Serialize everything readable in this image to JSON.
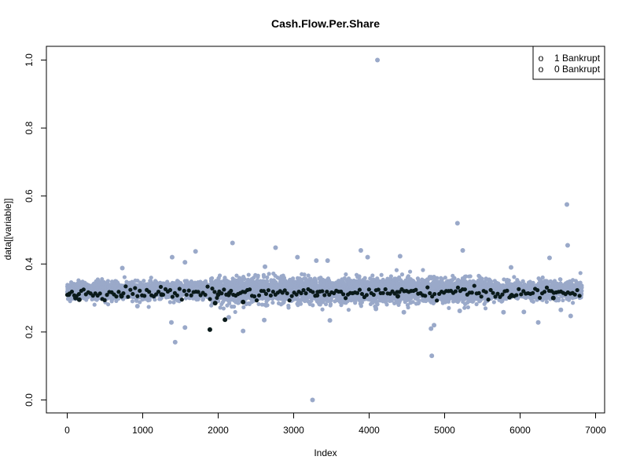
{
  "chart_data": {
    "type": "scatter",
    "title": "Cash.Flow.Per.Share",
    "xlabel": "Index",
    "ylabel": "data[[variable]]",
    "xlim": [
      0,
      6819
    ],
    "ylim": [
      0,
      1.0
    ],
    "x_ticks": [
      0,
      1000,
      2000,
      3000,
      4000,
      5000,
      6000,
      7000
    ],
    "y_ticks": [
      0.0,
      0.2,
      0.4,
      0.6,
      0.8,
      1.0
    ],
    "x_tick_labels": [
      "0",
      "1000",
      "2000",
      "3000",
      "4000",
      "5000",
      "6000",
      "7000"
    ],
    "y_tick_labels": [
      "0.0",
      "0.2",
      "0.4",
      "0.6",
      "0.8",
      "1.0"
    ],
    "grid": false,
    "legend": {
      "placement": "top-right",
      "entries": [
        {
          "marker": "o",
          "label": "1 Bankrupt"
        },
        {
          "marker": "o",
          "label": "0 Bankrupt"
        }
      ]
    },
    "colors": {
      "bankrupt_0": "#9aa9c9",
      "bankrupt_1": "#0a1a1a"
    },
    "series": [
      {
        "name": "0 Bankrupt",
        "points": [
          [
            4110,
            1.0
          ],
          [
            6620,
            0.575
          ],
          [
            5170,
            0.52
          ],
          [
            6630,
            0.455
          ],
          [
            2190,
            0.462
          ],
          [
            2760,
            0.448
          ],
          [
            5240,
            0.44
          ],
          [
            1700,
            0.437
          ],
          [
            3890,
            0.44
          ],
          [
            1390,
            0.42
          ],
          [
            3050,
            0.42
          ],
          [
            4410,
            0.423
          ],
          [
            3300,
            0.41
          ],
          [
            3450,
            0.41
          ],
          [
            6390,
            0.418
          ],
          [
            730,
            0.388
          ],
          [
            1560,
            0.405
          ],
          [
            3980,
            0.42
          ],
          [
            2620,
            0.392
          ],
          [
            5880,
            0.39
          ],
          [
            1430,
            0.17
          ],
          [
            1380,
            0.228
          ],
          [
            1560,
            0.213
          ],
          [
            2140,
            0.243
          ],
          [
            2330,
            0.203
          ],
          [
            2610,
            0.235
          ],
          [
            3250,
            0.0
          ],
          [
            3480,
            0.234
          ],
          [
            4830,
            0.13
          ],
          [
            4860,
            0.22
          ],
          [
            4820,
            0.21
          ],
          [
            6240,
            0.228
          ],
          [
            6670,
            0.247
          ],
          [
            5780,
            0.258
          ],
          [
            6050,
            0.259
          ],
          [
            930,
            0.276
          ],
          [
            4090,
            0.268
          ],
          [
            5200,
            0.262
          ],
          [
            4460,
            0.258
          ],
          [
            6540,
            0.265
          ]
        ]
      },
      {
        "name": "1 Bankrupt",
        "points": [
          [
            20,
            0.31
          ],
          [
            110,
            0.3
          ],
          [
            160,
            0.295
          ],
          [
            720,
            0.305
          ],
          [
            1890,
            0.207
          ],
          [
            1960,
            0.285
          ],
          [
            2090,
            0.236
          ],
          [
            2330,
            0.288
          ],
          [
            3310,
            0.308
          ],
          [
            4380,
            0.305
          ],
          [
            5880,
            0.306
          ],
          [
            6440,
            0.3
          ],
          [
            2000,
            0.31
          ],
          [
            2150,
            0.315
          ],
          [
            1250,
            0.31
          ]
        ]
      }
    ],
    "dense_bands": [
      {
        "series": "0 Bankrupt",
        "x_range": [
          0,
          6819
        ],
        "center": 0.322,
        "spread": 0.012,
        "count": 6599
      },
      {
        "series": "1 Bankrupt",
        "x_range": [
          0,
          6819
        ],
        "center": 0.315,
        "spread": 0.008,
        "count": 220
      }
    ]
  }
}
